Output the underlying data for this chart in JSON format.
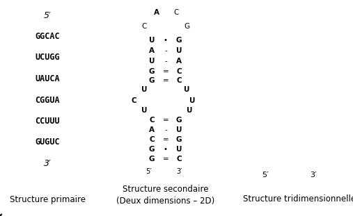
{
  "bg_color": "#ffffff",
  "primary_label": "Structure primaire",
  "secondary_label": "Structure secondaire",
  "secondary_sublabel": "(Deux dimensions – 2D)",
  "tertiary_label": "Structure tridimensionnelle",
  "primary_sequence": [
    "5′",
    "GGCAC",
    "UCUGG",
    "UAUCA",
    "CGGUA",
    "CCUUU",
    "GUGUC",
    "3′"
  ]
}
